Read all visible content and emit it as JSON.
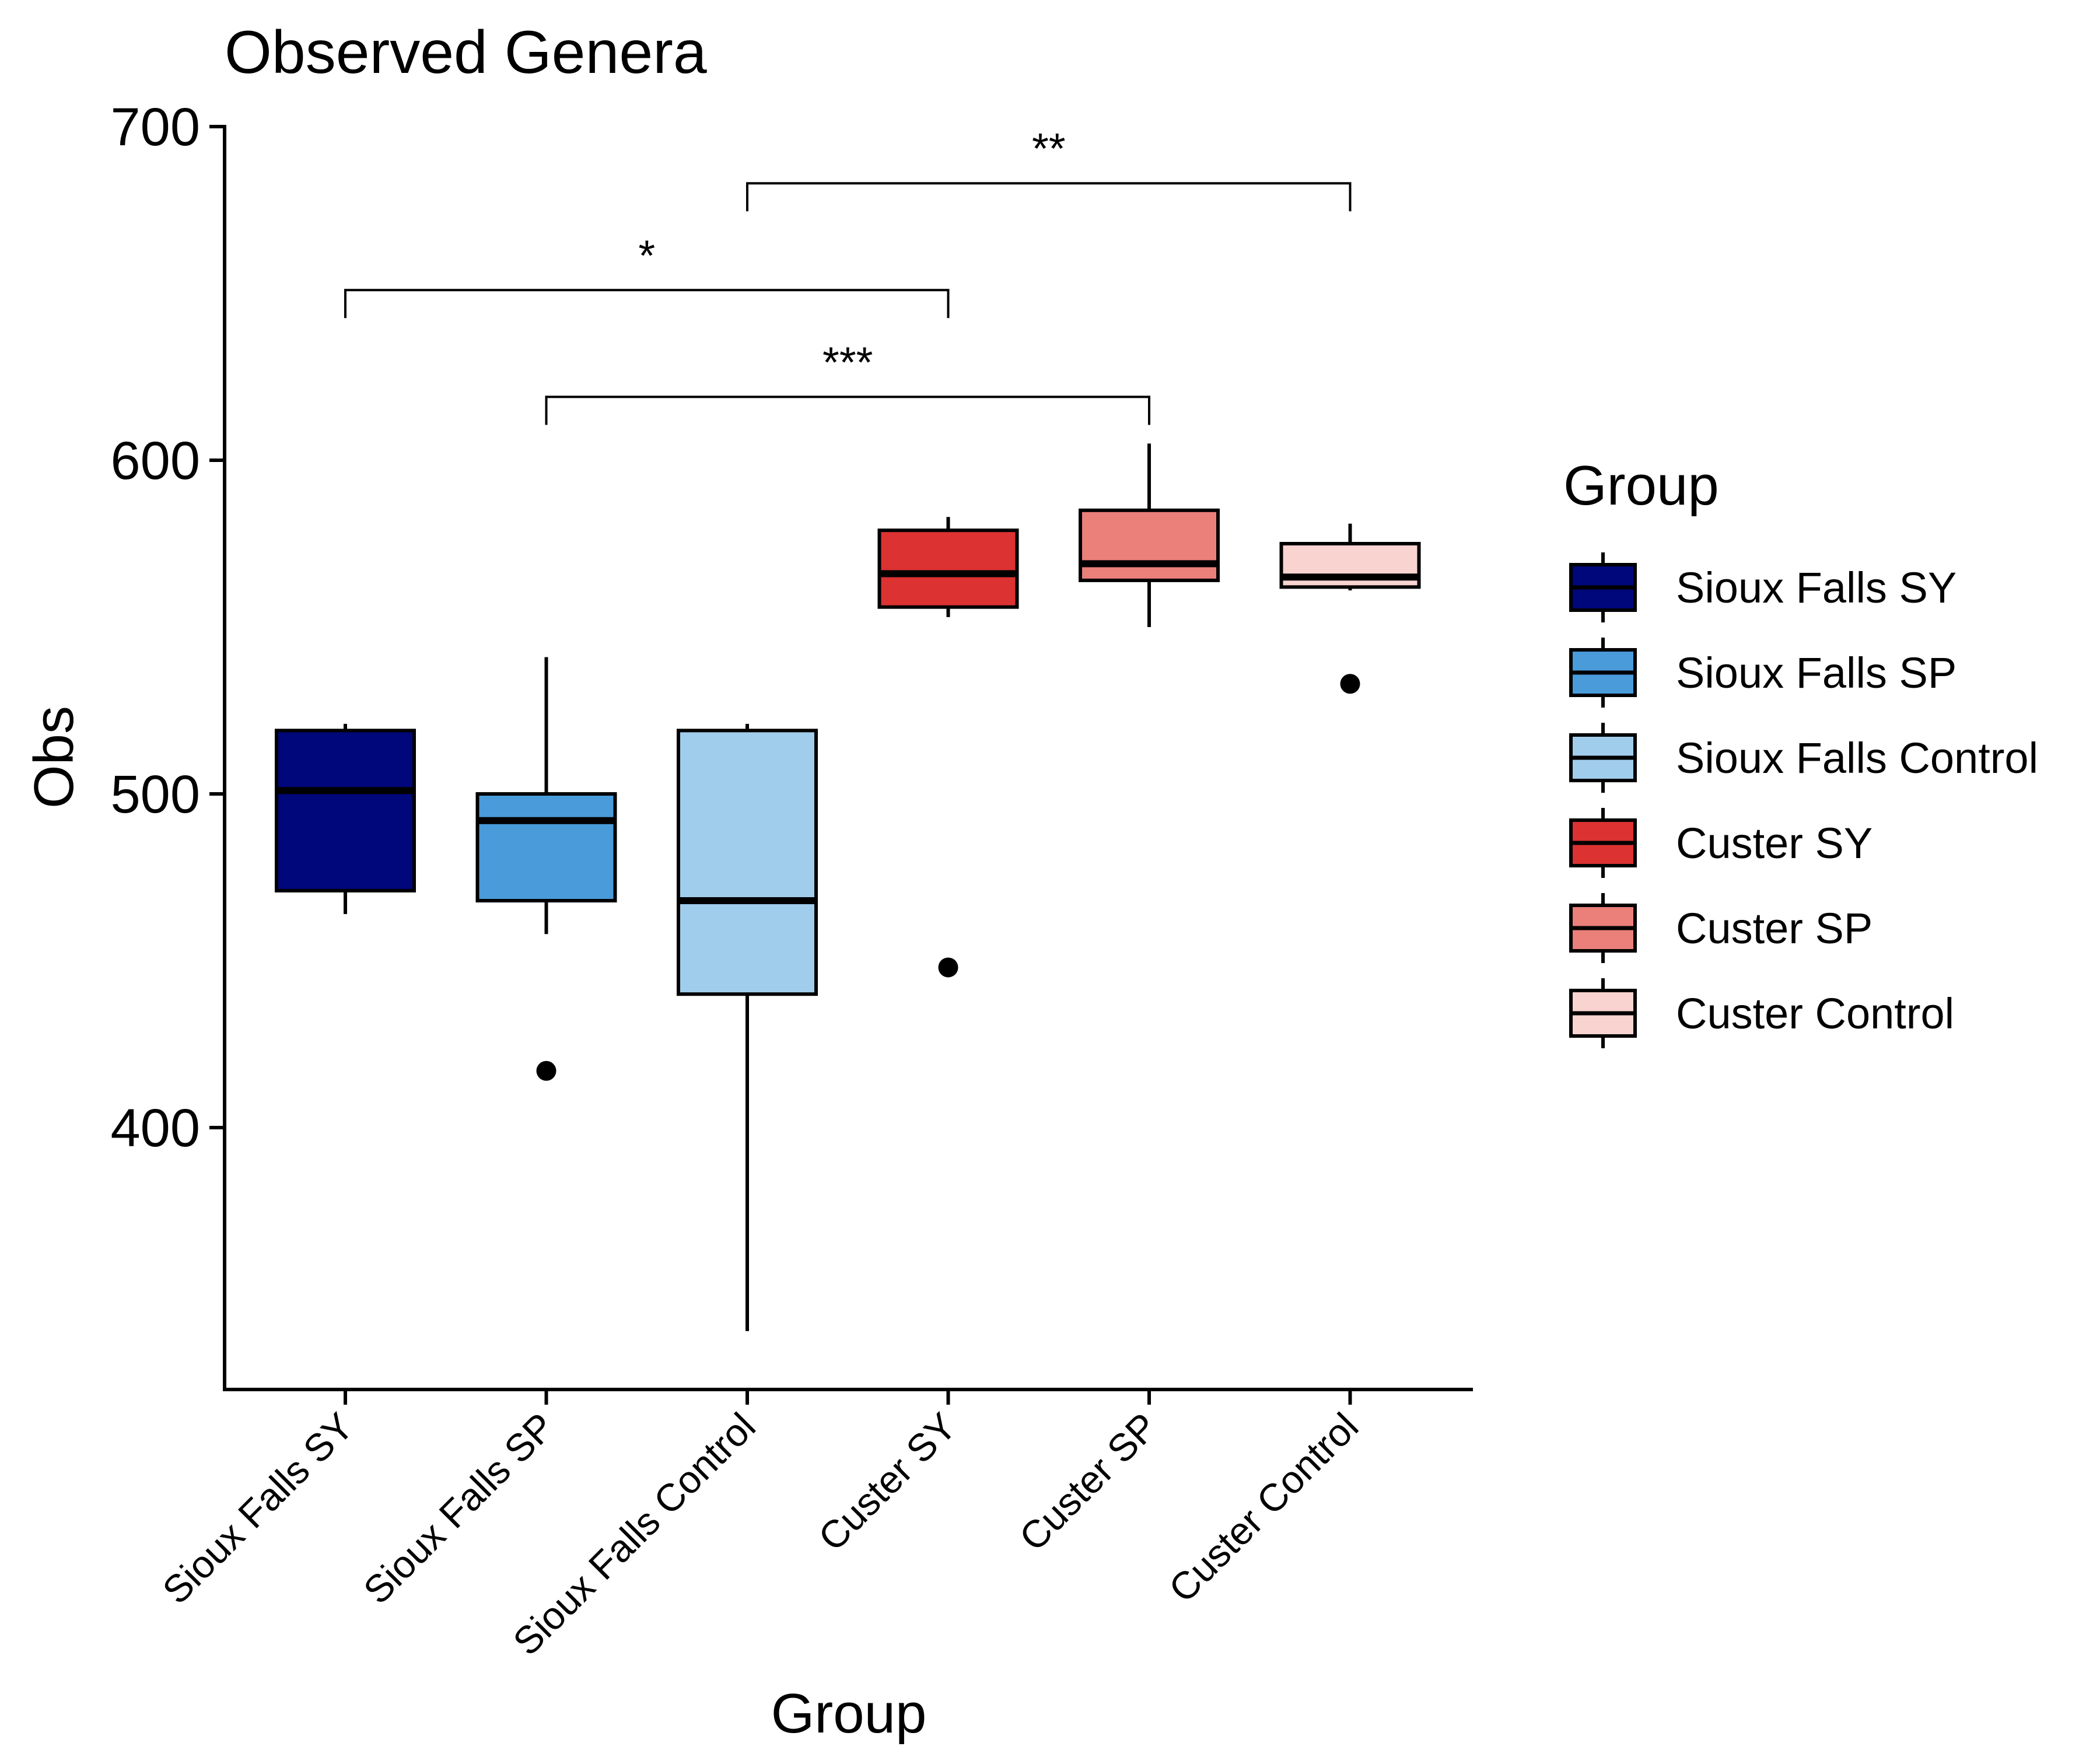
{
  "chart_data": {
    "type": "boxplot",
    "title": "Observed Genera",
    "xlabel": "Group",
    "ylabel": "Obs",
    "ylim": [
      320,
      700
    ],
    "yticks": [
      400,
      500,
      600,
      700
    ],
    "categories": [
      "Sioux Falls SY",
      "Sioux Falls SP",
      "Sioux Falls Control",
      "Custer SY",
      "Custer SP",
      "Custer Control"
    ],
    "boxes": [
      {
        "group": "Sioux Falls SY",
        "color": "#00077A",
        "whisker_low": 464,
        "q1": 471,
        "median": 501,
        "q3": 519,
        "whisker_high": 521,
        "outliers": []
      },
      {
        "group": "Sioux Falls SP",
        "color": "#4A9BDA",
        "whisker_low": 458,
        "q1": 468,
        "median": 492,
        "q3": 500,
        "whisker_high": 541,
        "outliers": [
          417
        ]
      },
      {
        "group": "Sioux Falls Control",
        "color": "#A1CDEC",
        "whisker_low": 339,
        "q1": 440,
        "median": 468,
        "q3": 519,
        "whisker_high": 521,
        "outliers": []
      },
      {
        "group": "Custer SY",
        "color": "#DC3232",
        "whisker_low": 553,
        "q1": 556,
        "median": 566,
        "q3": 579,
        "whisker_high": 583,
        "outliers": [
          448
        ]
      },
      {
        "group": "Custer SP",
        "color": "#EB7F7A",
        "whisker_low": 550,
        "q1": 564,
        "median": 569,
        "q3": 585,
        "whisker_high": 605,
        "outliers": []
      },
      {
        "group": "Custer Control",
        "color": "#F8D3D0",
        "whisker_low": 561,
        "q1": 562,
        "median": 565,
        "q3": 575,
        "whisker_high": 581,
        "outliers": [
          533
        ]
      }
    ],
    "significance": [
      {
        "from": "Sioux Falls SY",
        "to": "Custer SY",
        "label": "*",
        "y": 651
      },
      {
        "from": "Sioux Falls SP",
        "to": "Custer SP",
        "label": "***",
        "y": 619
      },
      {
        "from": "Sioux Falls Control",
        "to": "Custer Control",
        "label": "**",
        "y": 683
      }
    ],
    "legend": {
      "title": "Group",
      "placement": "right",
      "entries": [
        "Sioux Falls SY",
        "Sioux Falls SP",
        "Sioux Falls Control",
        "Custer SY",
        "Custer SP",
        "Custer Control"
      ]
    },
    "grid": false
  }
}
